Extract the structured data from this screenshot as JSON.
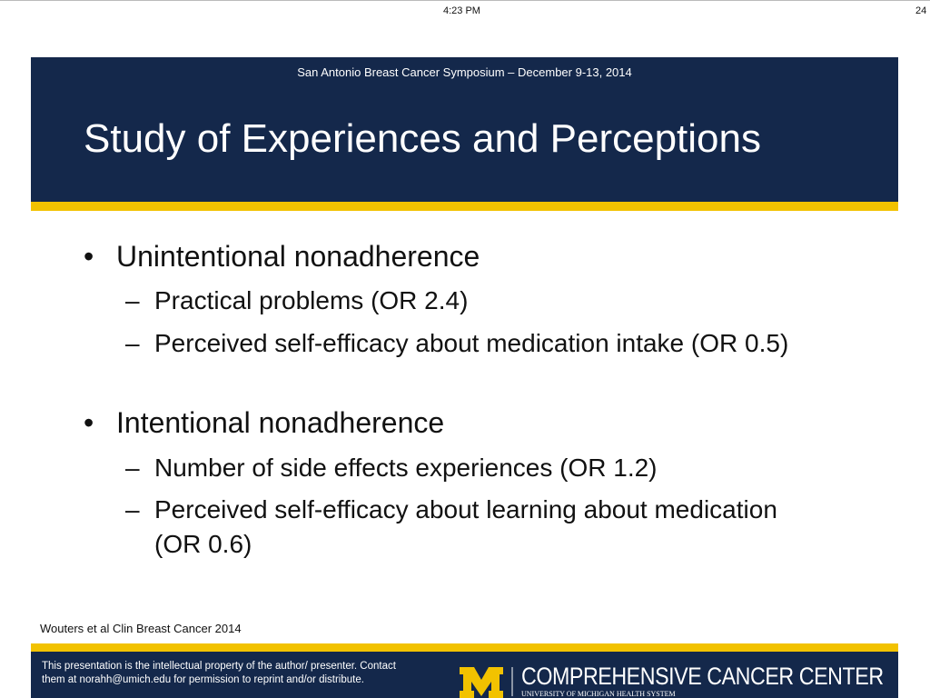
{
  "status_bar": {
    "time": "4:23 PM",
    "battery": "24"
  },
  "slide": {
    "header": "San Antonio Breast Cancer Symposium – December 9-13, 2014",
    "title": "Study of Experiences and Perceptions",
    "bullets": [
      {
        "text": "Unintentional nonadherence",
        "sub": [
          "Practical problems (OR 2.4)",
          "Perceived self-efficacy about medication intake (OR 0.5)"
        ]
      },
      {
        "text": "Intentional nonadherence",
        "sub": [
          "Number of side effects experiences (OR 1.2)",
          "Perceived self-efficacy about learning about medication (OR 0.6)"
        ]
      }
    ],
    "citation": "Wouters et al Clin Breast Cancer 2014",
    "footer": {
      "notice": "This presentation is the intellectual property of the author/ presenter.  Contact them at norahh@umich.edu for permission to   reprint and/or distribute.",
      "center_name": "COMPREHENSIVE CANCER CENTER",
      "system_name": "UNIVERSITY OF MICHIGAN HEALTH SYSTEM"
    }
  }
}
